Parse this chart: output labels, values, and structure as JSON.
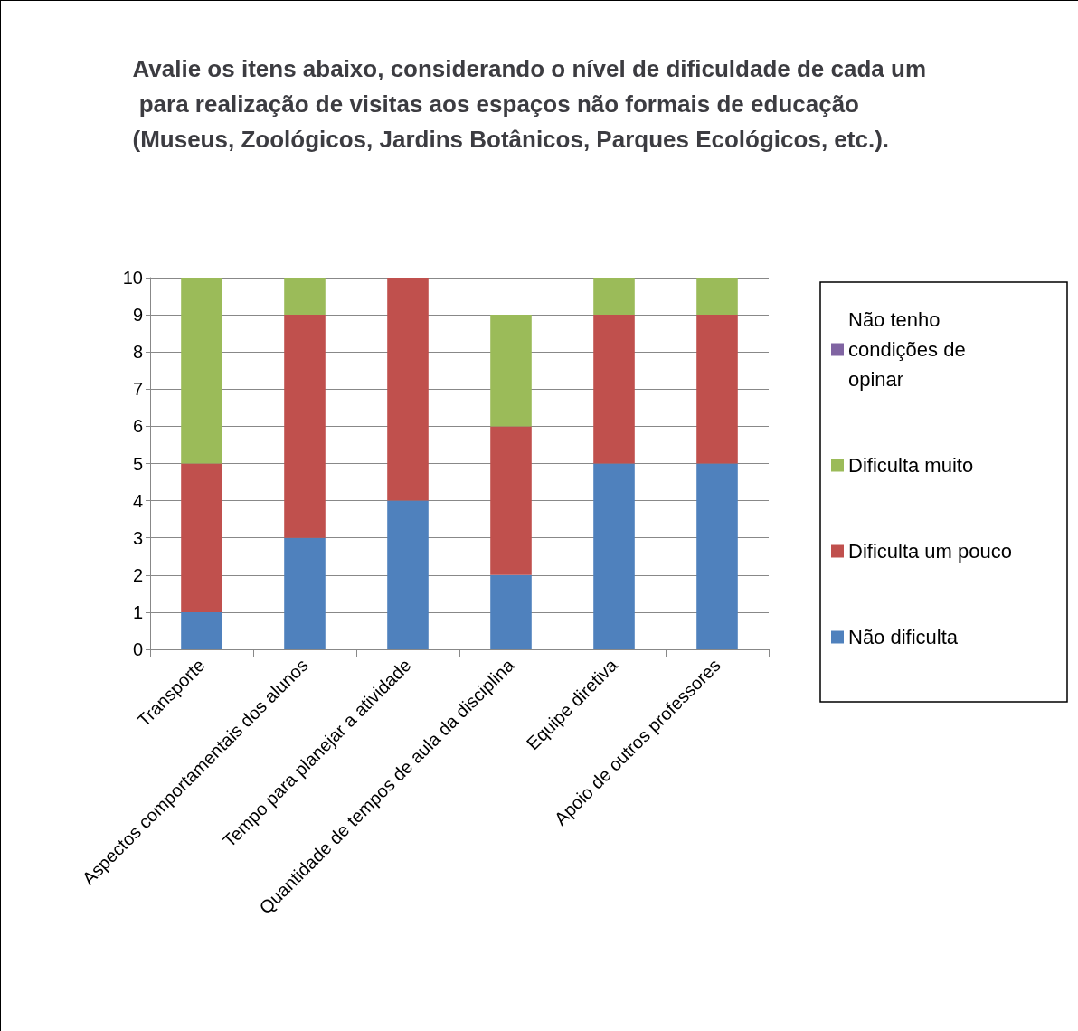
{
  "chart_data": {
    "type": "bar",
    "title": "Avalie os itens abaixo, considerando o nível de dificuldade de cada um para realização de visitas aos espaços não formais de educação (Museus, Zoológicos, Jardins Botânicos, Parques Ecológicos, etc.).",
    "categories": [
      "Transporte",
      "Aspectos comportamentais dos alunos",
      "Tempo para planejar a atividade",
      "Quantidade de tempos de aula da disciplina",
      "Equipe diretiva",
      "Apoio de outros professores"
    ],
    "series": [
      {
        "name": "Não dificulta",
        "color": "#4f81bd",
        "values": [
          1,
          3,
          4,
          2,
          5,
          5
        ]
      },
      {
        "name": "Dificulta um pouco",
        "color": "#c0504d",
        "values": [
          4,
          6,
          6,
          4,
          4,
          4
        ]
      },
      {
        "name": "Dificulta muito",
        "color": "#9bbb59",
        "values": [
          5,
          1,
          0,
          3,
          1,
          1
        ]
      },
      {
        "name": "Não tenho condições de opinar",
        "color": "#8064a2",
        "values": [
          0,
          0,
          0,
          0,
          0,
          0
        ]
      }
    ],
    "stacked": true,
    "ylim": [
      0,
      10
    ],
    "yticks": [
      0,
      1,
      2,
      3,
      4,
      5,
      6,
      7,
      8,
      9,
      10
    ],
    "grid": "y",
    "legend": "right"
  }
}
